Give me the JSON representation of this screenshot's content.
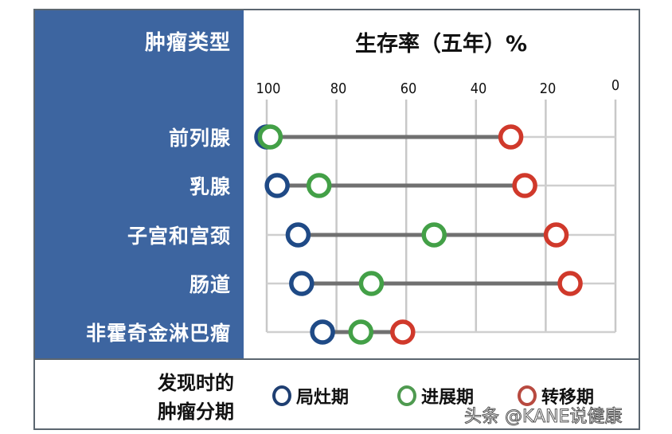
{
  "chart_data": {
    "type": "dumbbell",
    "title": "生存率（五年）%",
    "ylabel": "肿瘤类型",
    "xlabel": "生存率（五年）%",
    "x_axis_reversed": true,
    "xlim": [
      100,
      0
    ],
    "x_ticks": [
      100,
      80,
      60,
      40,
      20,
      0
    ],
    "grid": true,
    "categories": [
      "前列腺",
      "乳腺",
      "子宫和宫颈",
      "肠道",
      "非霍奇金淋巴瘤"
    ],
    "series": [
      {
        "name": "局灶期",
        "color": "#1f4a86",
        "values": [
          100,
          97,
          91,
          90,
          84
        ]
      },
      {
        "name": "进展期",
        "color": "#43a047",
        "values": [
          99,
          85,
          52,
          70,
          73
        ]
      },
      {
        "name": "转移期",
        "color": "#d0392b",
        "values": [
          30,
          26,
          17,
          13,
          61
        ]
      }
    ],
    "legend_title": "发现时的肿瘤分期",
    "legend_position": "bottom"
  },
  "header": {
    "category_title": "肿瘤类型",
    "chart_title": "生存率（五年）%"
  },
  "ticks": [
    "100",
    "80",
    "60",
    "40",
    "20",
    "0"
  ],
  "categories": [
    "前列腺",
    "乳腺",
    "子宫和宫颈",
    "肠道",
    "非霍奇金淋巴瘤"
  ],
  "legend": {
    "title_line1": "发现时的",
    "title_line2": "肿瘤分期",
    "items": [
      {
        "label": "局灶期",
        "color": "#1f4a86"
      },
      {
        "label": "进展期",
        "color": "#43a047"
      },
      {
        "label": "转移期",
        "color": "#d0392b"
      }
    ]
  },
  "watermark": "头条 @KANE说健康"
}
